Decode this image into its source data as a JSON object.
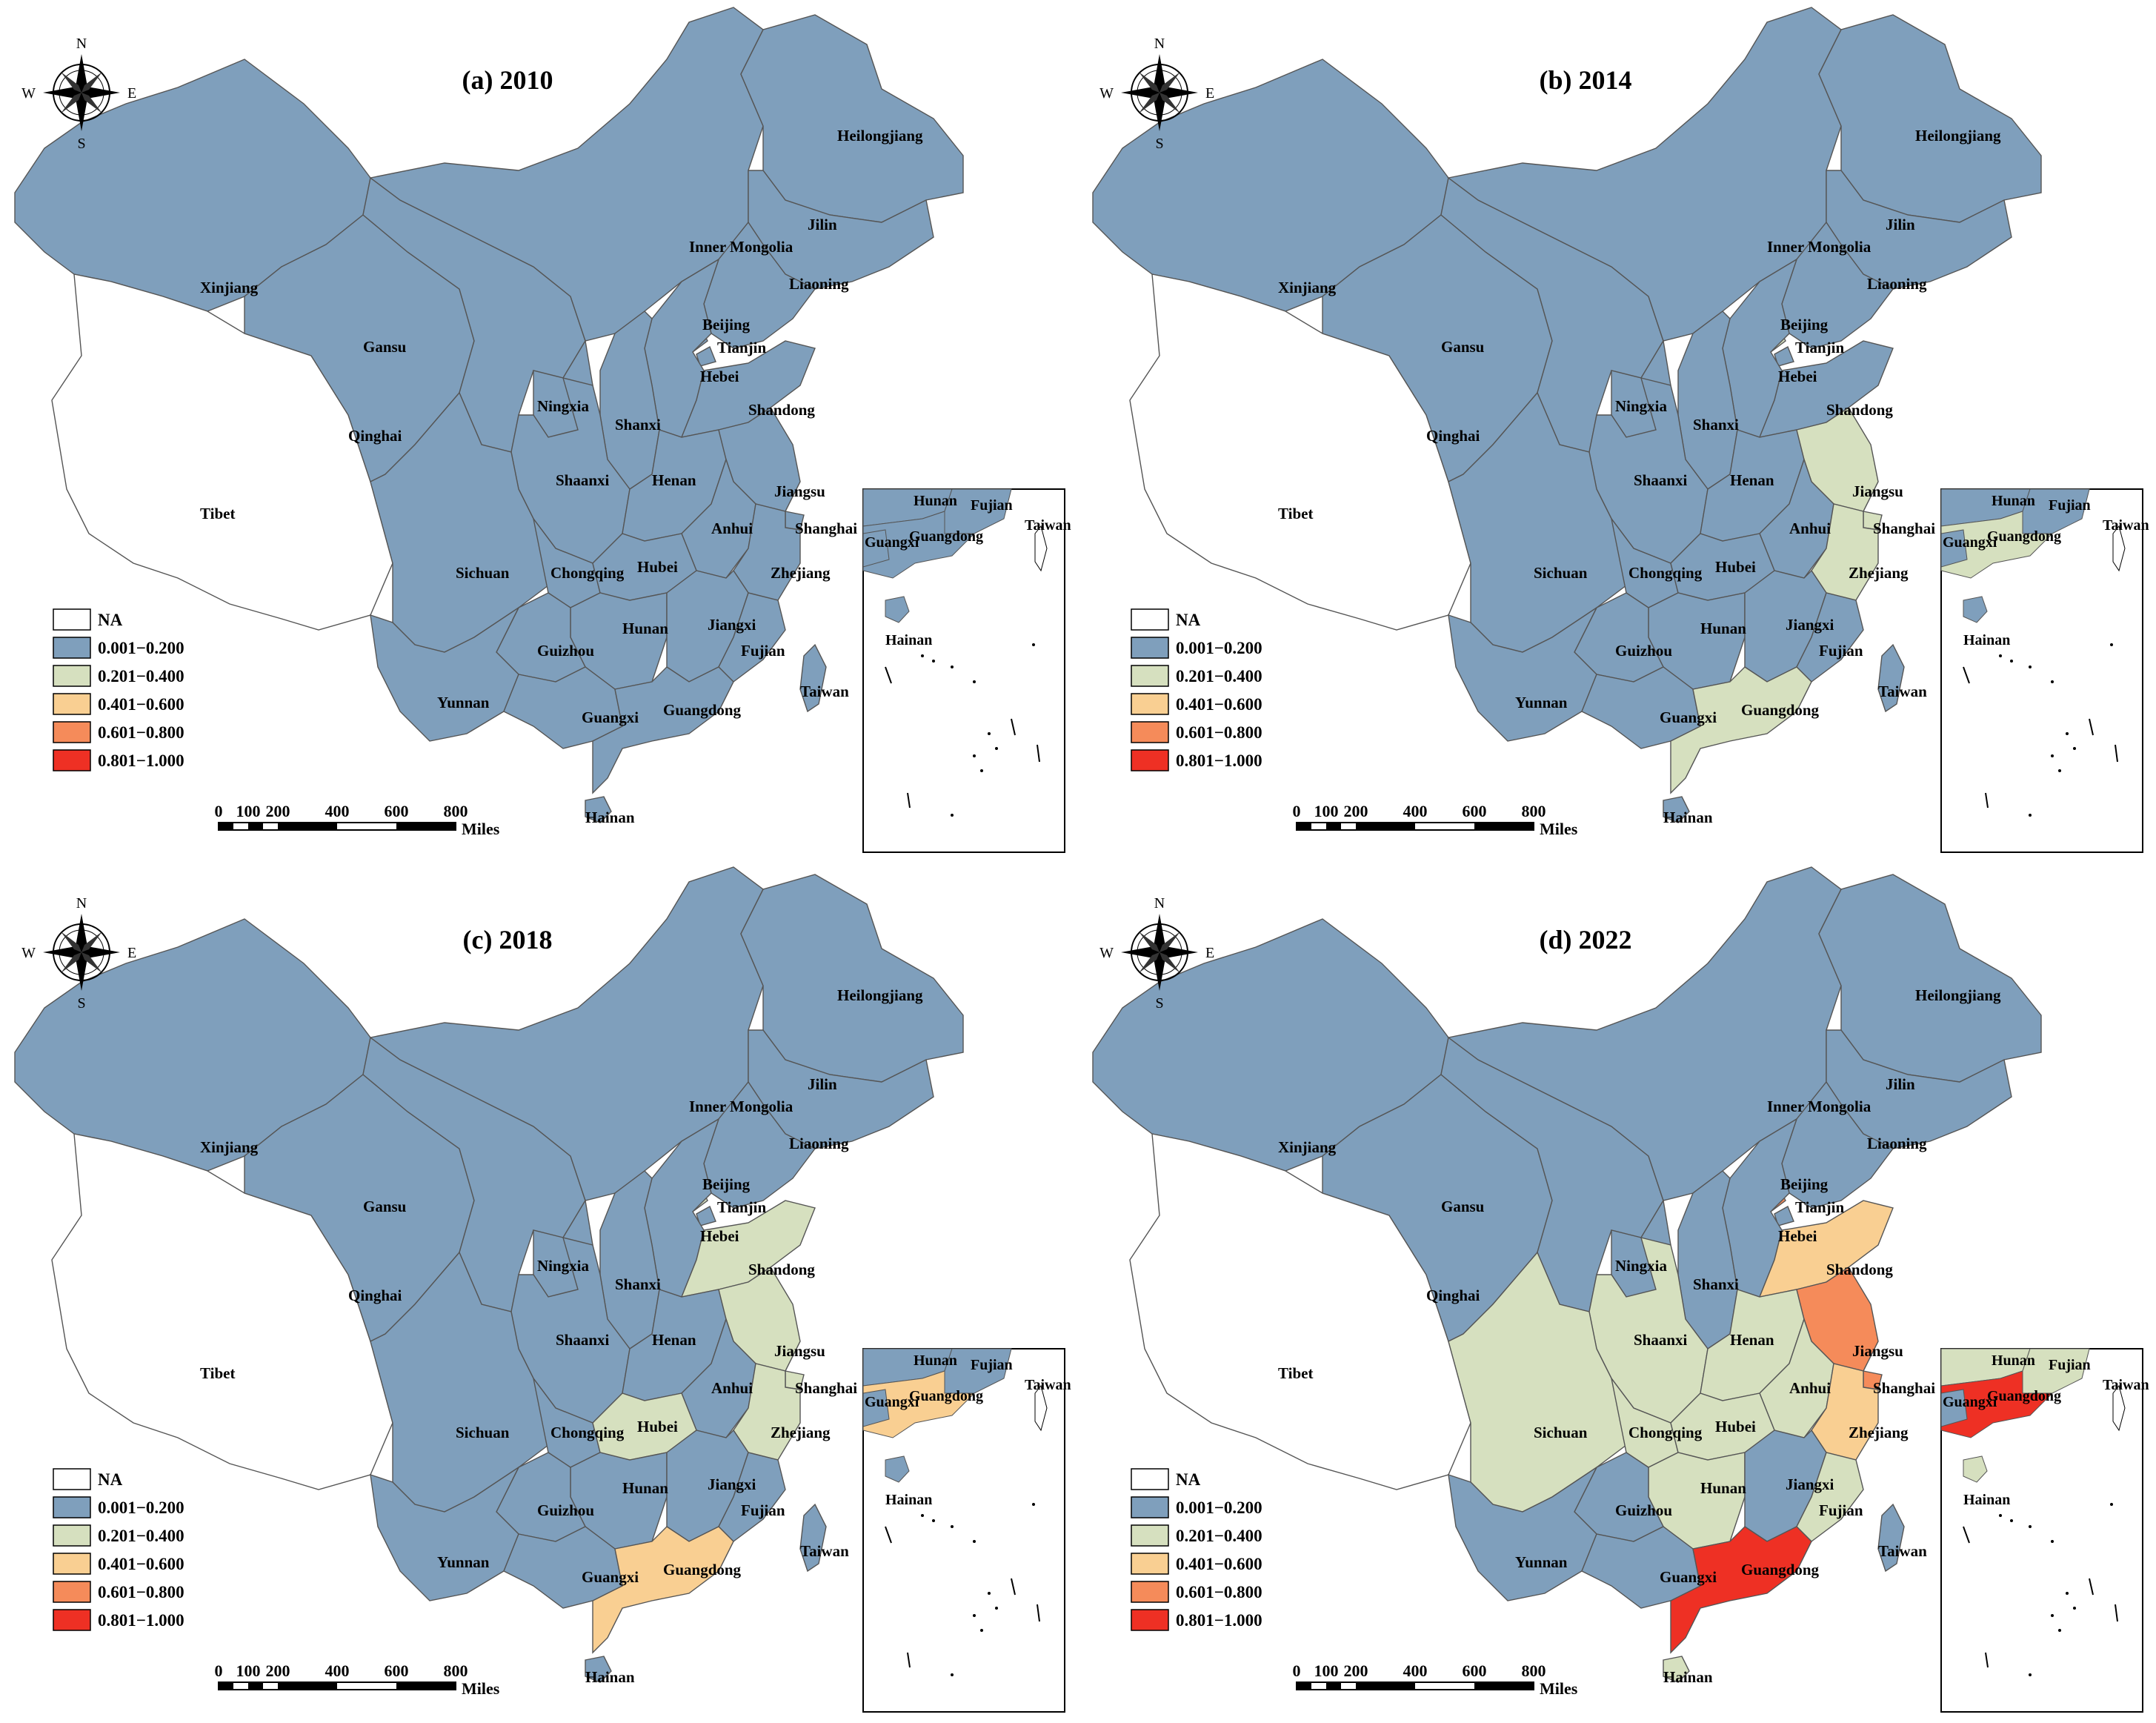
{
  "legend": {
    "classes": [
      {
        "label": "NA",
        "color": "#ffffff"
      },
      {
        "label": "0.001−0.200",
        "color": "#7f9fbc"
      },
      {
        "label": "0.201−0.400",
        "color": "#d6e0bf"
      },
      {
        "label": "0.401−0.600",
        "color": "#f9cf92"
      },
      {
        "label": "0.601−0.800",
        "color": "#f58b5a"
      },
      {
        "label": "0.801−1.000",
        "color": "#ee3024"
      }
    ]
  },
  "compass": {
    "n": "N",
    "s": "S",
    "e": "E",
    "w": "W"
  },
  "scalebar": {
    "ticks": [
      "0",
      "100",
      "200",
      "400",
      "600",
      "800"
    ],
    "unit": "Miles"
  },
  "panels": [
    {
      "title": "(a) 2010",
      "classes": {
        "Tibet": 0
      },
      "default_class": 1
    },
    {
      "title": "(b) 2014",
      "classes": {
        "Tibet": 0,
        "Beijing": 2,
        "Jiangsu": 2,
        "Shanghai": 2,
        "Zhejiang": 2,
        "Guangdong": 2
      },
      "default_class": 1
    },
    {
      "title": "(c) 2018",
      "classes": {
        "Tibet": 0,
        "Beijing": 2,
        "Shandong": 2,
        "Jiangsu": 2,
        "Shanghai": 2,
        "Zhejiang": 2,
        "Hubei": 2,
        "Guangdong": 3
      },
      "default_class": 1
    },
    {
      "title": "(d) 2022",
      "classes": {
        "Tibet": 0,
        "Beijing": 4,
        "Shandong": 3,
        "Jiangsu": 4,
        "Shanghai": 4,
        "Zhejiang": 3,
        "Guangdong": 5,
        "Shaanxi": 2,
        "Henan": 2,
        "Sichuan": 2,
        "Chongqing": 2,
        "Hubei": 2,
        "Hunan": 2,
        "Anhui": 2,
        "Fujian": 2,
        "Hainan": 2
      },
      "default_class": 1
    }
  ],
  "province_labels": {
    "Xinjiang": "Xinjiang",
    "Tibet": "Tibet",
    "Qinghai": "Qinghai",
    "Gansu": "Gansu",
    "Inner Mongolia": "Inner Mongolia",
    "Heilongjiang": "Heilongjiang",
    "Jilin": "Jilin",
    "Liaoning": "Liaoning",
    "Beijing": "Beijing",
    "Tianjin": "Tianjin",
    "Hebei": "Hebei",
    "Ningxia": "Ningxia",
    "Shanxi": "Shanxi",
    "Shandong": "Shandong",
    "Shaanxi": "Shaanxi",
    "Henan": "Henan",
    "Jiangsu": "Jiangsu",
    "Anhui": "Anhui",
    "Shanghai": "Shanghai",
    "Sichuan": "Sichuan",
    "Chongqing": "Chongqing",
    "Hubei": "Hubei",
    "Zhejiang": "Zhejiang",
    "Hunan": "Hunan",
    "Jiangxi": "Jiangxi",
    "Guizhou": "Guizhou",
    "Fujian": "Fujian",
    "Yunnan": "Yunnan",
    "Guangxi": "Guangxi",
    "Guangdong": "Guangdong",
    "Taiwan": "Taiwan",
    "Hainan": "Hainan"
  },
  "inset_labels": [
    "Hunan",
    "Fujian",
    "Taiwan",
    "Guangxi",
    "Guangdong",
    "Hainan"
  ]
}
